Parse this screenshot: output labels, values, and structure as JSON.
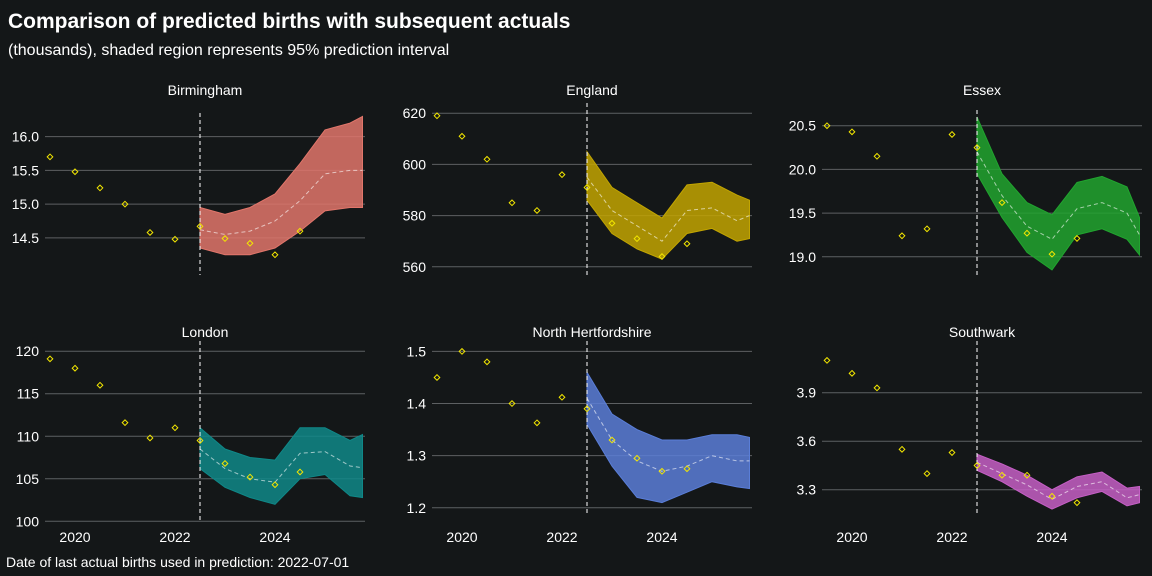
{
  "title": "Comparison of predicted births with subsequent actuals",
  "subtitle": "(thousands), shaded region represents 95% prediction interval",
  "caption": "Date of last actual births used in prediction: 2022-07-01",
  "chart_data": [
    {
      "type": "area",
      "panel": "Birmingham",
      "color": "#e1766b",
      "xlim": [
        2019.4,
        2025.8
      ],
      "ylim": [
        13.95,
        16.35
      ],
      "yticks": [
        "14.5",
        "15.0",
        "15.5",
        "16.0"
      ],
      "xticks": [],
      "cutoff": 2022.5,
      "actuals": {
        "x": [
          2019.5,
          2020.0,
          2020.5,
          2021.0,
          2021.5,
          2022.0,
          2022.5,
          2023.0,
          2023.5,
          2024.0,
          2024.5
        ],
        "y": [
          15.7,
          15.48,
          15.24,
          15.0,
          14.58,
          14.48,
          14.67,
          14.49,
          14.42,
          14.25,
          14.6
        ]
      },
      "forecast": {
        "x": [
          2022.5,
          2023.0,
          2023.5,
          2024.0,
          2024.5,
          2025.0,
          2025.5,
          2025.75
        ],
        "mid": [
          14.62,
          14.55,
          14.6,
          14.75,
          15.05,
          15.45,
          15.5,
          15.5
        ],
        "lower": [
          14.35,
          14.25,
          14.25,
          14.35,
          14.6,
          14.9,
          14.95,
          14.95
        ],
        "upper": [
          14.95,
          14.85,
          14.95,
          15.15,
          15.6,
          16.1,
          16.2,
          16.3
        ]
      }
    },
    {
      "type": "area",
      "panel": "England",
      "color": "#c2a501",
      "xlim": [
        2019.4,
        2025.8
      ],
      "ylim": [
        556,
        624
      ],
      "yticks": [
        "560",
        "580",
        "600",
        "620"
      ],
      "xticks": [],
      "cutoff": 2022.5,
      "actuals": {
        "x": [
          2019.5,
          2020.0,
          2020.5,
          2021.0,
          2021.5,
          2022.0,
          2022.5,
          2023.0,
          2023.5,
          2024.0,
          2024.5
        ],
        "y": [
          619,
          611,
          602,
          585,
          582,
          596,
          591,
          577,
          571,
          564,
          569
        ]
      },
      "forecast": {
        "x": [
          2022.5,
          2023.0,
          2023.5,
          2024.0,
          2024.5,
          2025.0,
          2025.5,
          2025.75
        ],
        "mid": [
          595,
          582,
          576,
          570,
          582,
          583,
          578,
          580
        ],
        "lower": [
          586,
          573,
          567,
          563,
          573,
          575,
          570,
          571
        ],
        "upper": [
          605,
          591,
          585,
          579,
          592,
          593,
          588,
          586
        ]
      }
    },
    {
      "type": "area",
      "panel": "Essex",
      "color": "#21a42f",
      "xlim": [
        2019.4,
        2025.8
      ],
      "ylim": [
        18.78,
        20.68
      ],
      "yticks": [
        "19.0",
        "19.5",
        "20.0",
        "20.5"
      ],
      "xticks": [],
      "cutoff": 2022.5,
      "actuals": {
        "x": [
          2019.5,
          2020.0,
          2020.5,
          2021.0,
          2021.5,
          2022.0,
          2022.5,
          2023.0,
          2023.5,
          2024.0,
          2024.5
        ],
        "y": [
          20.5,
          20.43,
          20.15,
          19.24,
          19.32,
          20.4,
          20.25,
          19.62,
          19.27,
          19.03,
          19.21
        ]
      },
      "forecast": {
        "x": [
          2022.5,
          2023.0,
          2023.5,
          2024.0,
          2024.5,
          2025.0,
          2025.5,
          2025.75
        ],
        "mid": [
          20.2,
          19.7,
          19.35,
          19.2,
          19.55,
          19.62,
          19.5,
          19.25
        ],
        "lower": [
          19.95,
          19.45,
          19.05,
          18.85,
          19.25,
          19.32,
          19.2,
          19.02
        ],
        "upper": [
          20.6,
          19.95,
          19.62,
          19.48,
          19.85,
          19.92,
          19.8,
          19.45
        ]
      }
    },
    {
      "type": "area",
      "panel": "London",
      "color": "#0f8888",
      "xlim": [
        2019.4,
        2025.8
      ],
      "ylim": [
        99.8,
        121.2
      ],
      "yticks": [
        "100",
        "105",
        "110",
        "115",
        "120"
      ],
      "xticks": [
        "2020",
        "2022",
        "2024"
      ],
      "cutoff": 2022.5,
      "actuals": {
        "x": [
          2019.5,
          2020.0,
          2020.5,
          2021.0,
          2021.5,
          2022.0,
          2022.5,
          2023.0,
          2023.5,
          2024.0,
          2024.5
        ],
        "y": [
          119.1,
          118.0,
          116.0,
          111.6,
          109.8,
          111.0,
          109.5,
          106.8,
          105.2,
          104.3,
          105.8
        ]
      },
      "forecast": {
        "x": [
          2022.5,
          2023.0,
          2023.5,
          2024.0,
          2024.5,
          2025.0,
          2025.5,
          2025.75
        ],
        "mid": [
          108.5,
          106.2,
          105.0,
          104.6,
          108.0,
          108.2,
          106.5,
          106.3
        ],
        "lower": [
          106.2,
          104.0,
          102.8,
          102.0,
          105.0,
          105.5,
          103.0,
          102.8
        ],
        "upper": [
          111.0,
          108.5,
          107.5,
          107.2,
          111.0,
          111.0,
          109.5,
          110.2
        ]
      }
    },
    {
      "type": "area",
      "panel": "North Hertfordshire",
      "color": "#5a7ed8",
      "xlim": [
        2019.4,
        2025.8
      ],
      "ylim": [
        1.19,
        1.52
      ],
      "yticks": [
        "1.2",
        "1.3",
        "1.4",
        "1.5"
      ],
      "xticks": [
        "2020",
        "2022",
        "2024"
      ],
      "cutoff": 2022.5,
      "actuals": {
        "x": [
          2019.5,
          2020.0,
          2020.5,
          2021.0,
          2021.5,
          2022.0,
          2022.5,
          2023.0,
          2023.5,
          2024.0,
          2024.5
        ],
        "y": [
          1.45,
          1.5,
          1.48,
          1.4,
          1.363,
          1.412,
          1.39,
          1.33,
          1.295,
          1.27,
          1.275
        ]
      },
      "forecast": {
        "x": [
          2022.5,
          2023.0,
          2023.5,
          2024.0,
          2024.5,
          2025.0,
          2025.5,
          2025.75
        ],
        "mid": [
          1.41,
          1.33,
          1.29,
          1.27,
          1.28,
          1.3,
          1.29,
          1.29
        ],
        "lower": [
          1.36,
          1.28,
          1.22,
          1.21,
          1.23,
          1.25,
          1.24,
          1.237
        ],
        "upper": [
          1.46,
          1.38,
          1.35,
          1.33,
          1.33,
          1.34,
          1.34,
          1.335
        ]
      }
    },
    {
      "type": "area",
      "panel": "Southwark",
      "color": "#c55fc5",
      "xlim": [
        2019.4,
        2025.8
      ],
      "ylim": [
        3.15,
        4.22
      ],
      "yticks": [
        "3.3",
        "3.6",
        "3.9"
      ],
      "xticks": [
        "2020",
        "2022",
        "2024"
      ],
      "cutoff": 2022.5,
      "actuals": {
        "x": [
          2019.5,
          2020.0,
          2020.5,
          2021.0,
          2021.5,
          2022.0,
          2022.5,
          2023.0,
          2023.5,
          2024.0,
          2024.5
        ],
        "y": [
          4.1,
          4.02,
          3.93,
          3.55,
          3.4,
          3.53,
          3.45,
          3.39,
          3.39,
          3.26,
          3.22
        ]
      },
      "forecast": {
        "x": [
          2022.5,
          2023.0,
          2023.5,
          2024.0,
          2024.5,
          2025.0,
          2025.5,
          2025.75
        ],
        "mid": [
          3.47,
          3.4,
          3.33,
          3.24,
          3.32,
          3.35,
          3.25,
          3.27
        ],
        "lower": [
          3.42,
          3.35,
          3.26,
          3.18,
          3.25,
          3.29,
          3.2,
          3.22
        ],
        "upper": [
          3.52,
          3.46,
          3.39,
          3.3,
          3.38,
          3.41,
          3.31,
          3.32
        ]
      }
    }
  ]
}
